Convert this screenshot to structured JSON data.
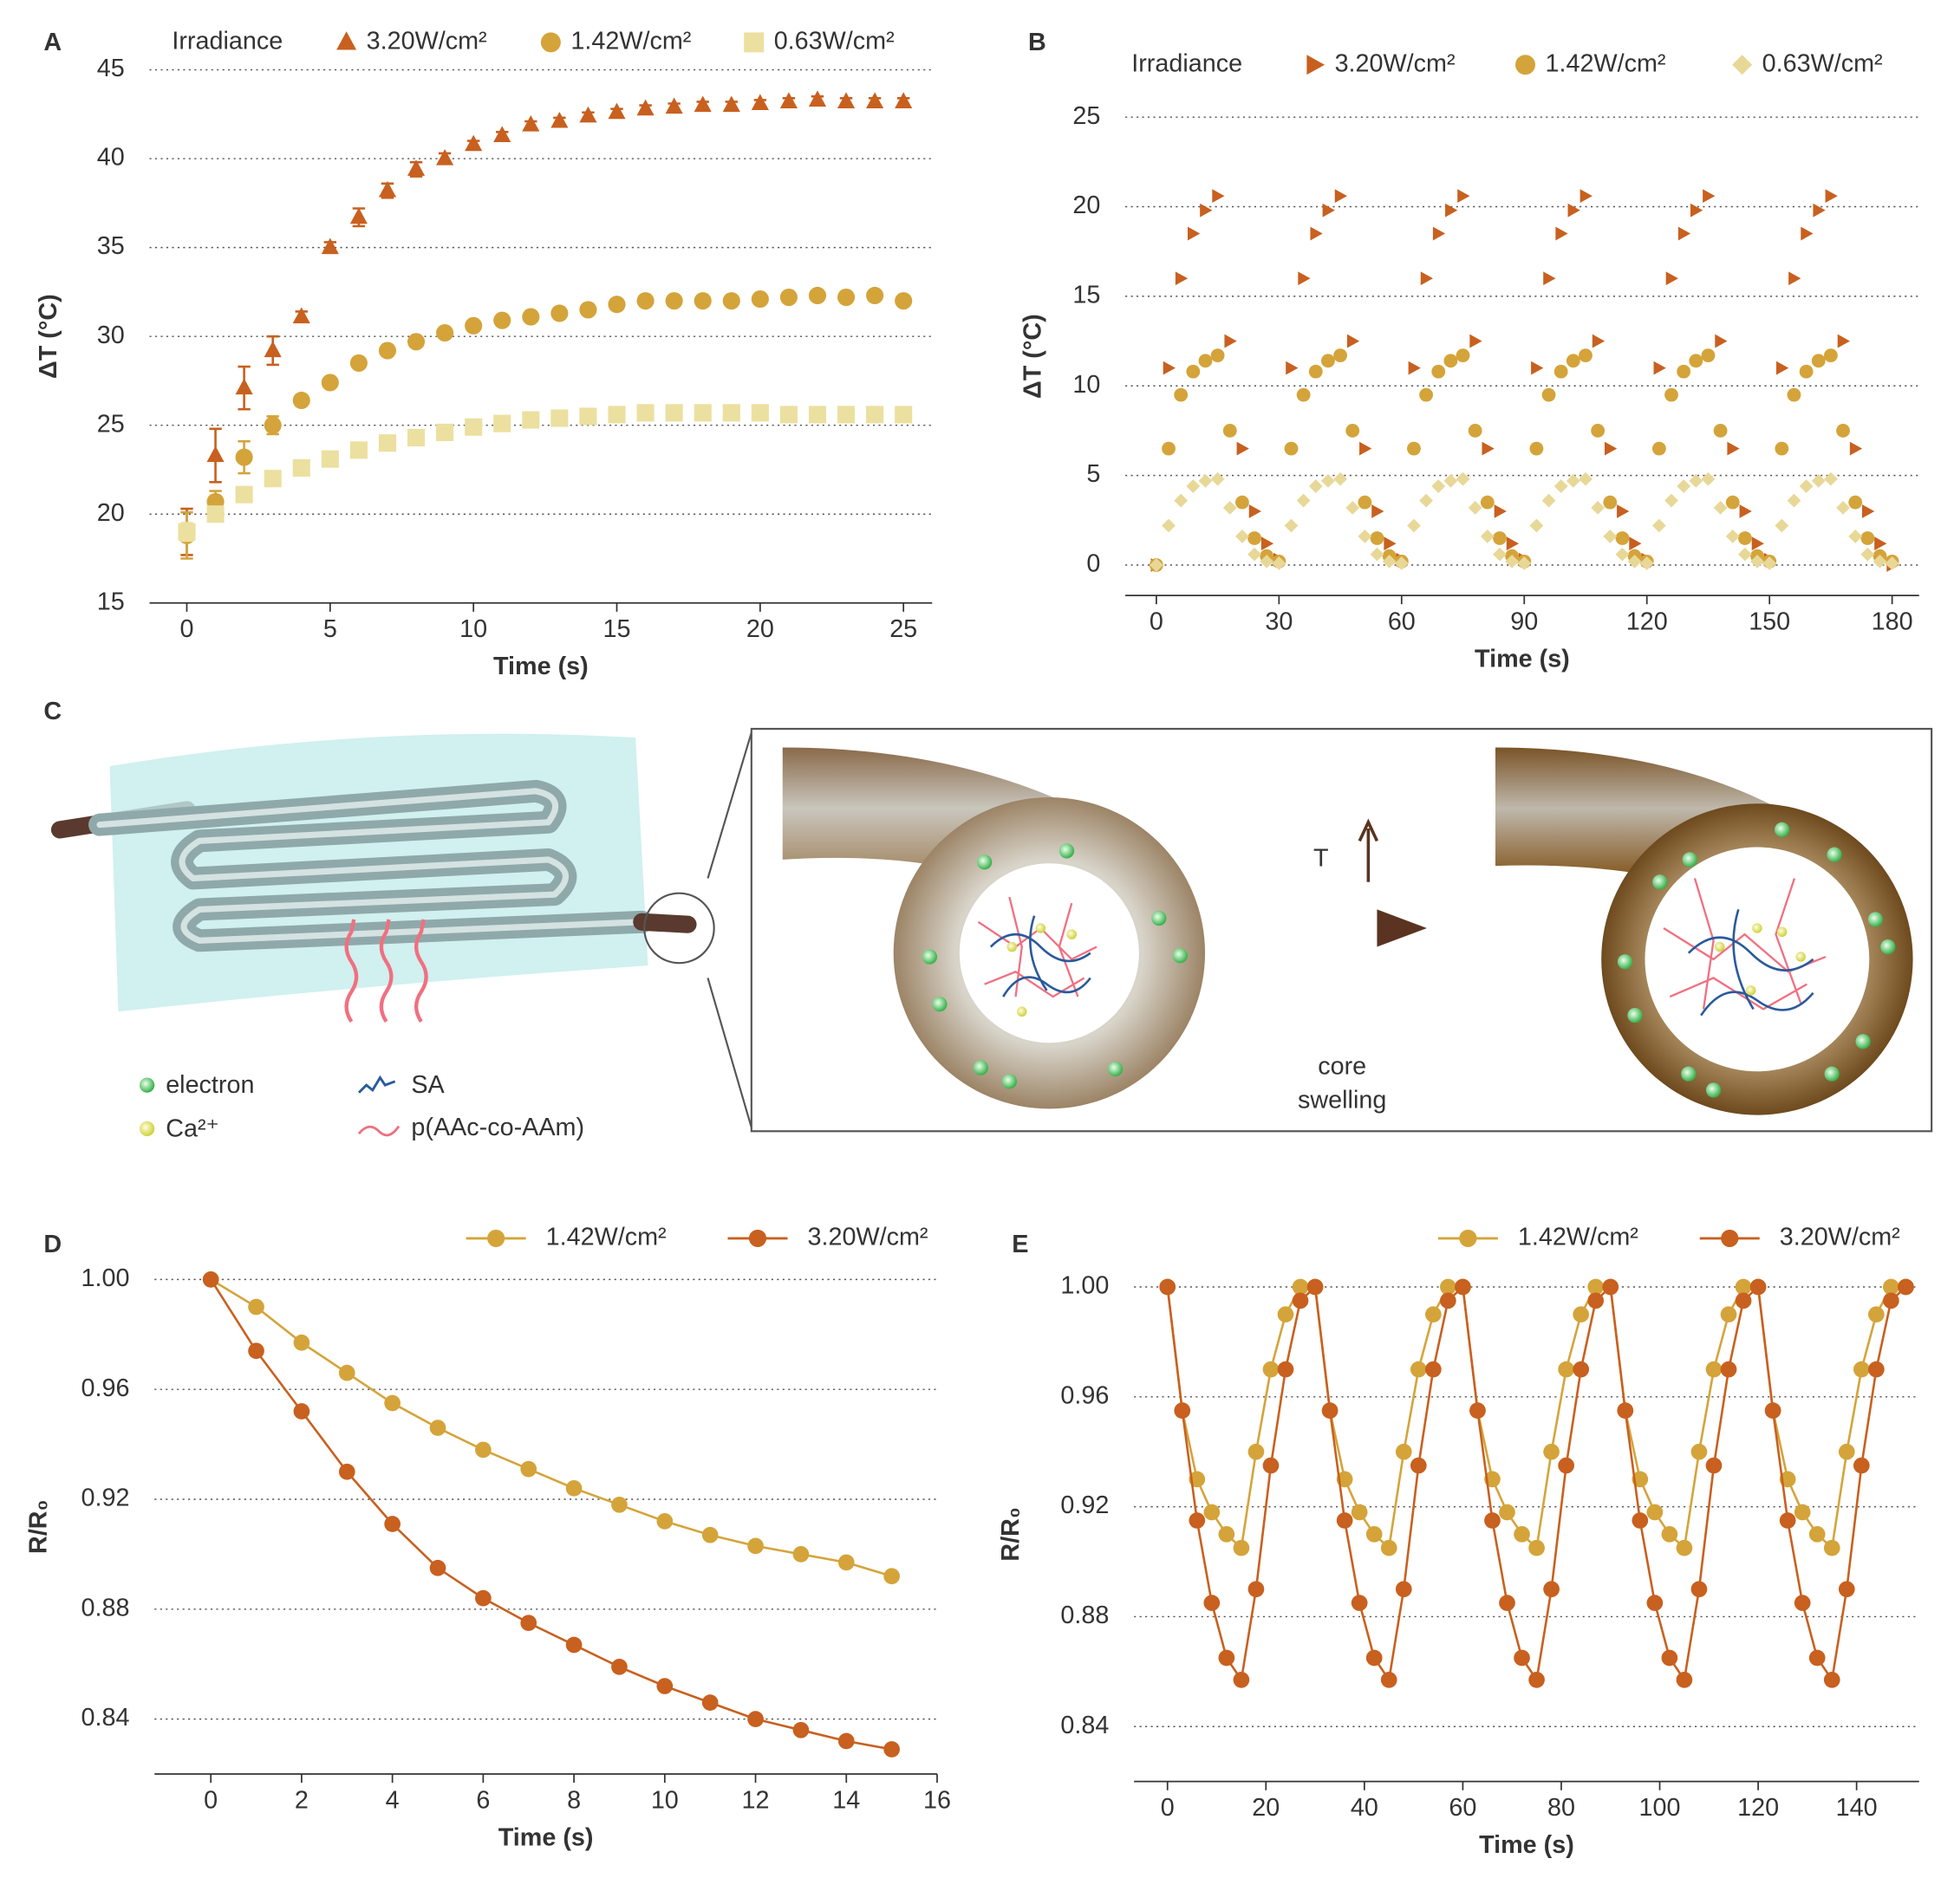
{
  "chart_data": [
    {
      "type": "scatter",
      "panel_label": "A",
      "legend_title": "Irradiance",
      "x_label": "Time (s)",
      "y_label": "ΔT (°C)",
      "x": [
        0,
        1,
        2,
        3,
        4,
        5,
        6,
        7,
        8,
        9,
        10,
        11,
        12,
        13,
        14,
        15,
        16,
        17,
        18,
        19,
        20,
        21,
        22,
        23,
        24,
        25
      ],
      "xlim": [
        -1.3,
        26
      ],
      "xticks": [
        0,
        5,
        10,
        15,
        20,
        25
      ],
      "ylim": [
        15,
        45
      ],
      "yticks": [
        15,
        20,
        25,
        30,
        35,
        40,
        45
      ],
      "grid": true,
      "series": [
        {
          "name": "3.20W/cm²",
          "color": "#c8601f",
          "marker": "triangle",
          "values": [
            19,
            23.3,
            27.1,
            29.2,
            31.1,
            35,
            36.7,
            38.2,
            39.4,
            40,
            40.8,
            41.3,
            41.9,
            42.1,
            42.4,
            42.6,
            42.8,
            42.9,
            43,
            43,
            43.1,
            43.2,
            43.3,
            43.2,
            43.2,
            43.2
          ],
          "errors": [
            1.3,
            1.5,
            1.2,
            0.8,
            0.3,
            0.3,
            0.5,
            0.4,
            0.4,
            0.3,
            0.2,
            0.2,
            0.2,
            0.2,
            0.2,
            0.2,
            0.2,
            0.2,
            0.2,
            0.2,
            0.2,
            0.2,
            0.2,
            0.2,
            0.2,
            0.2
          ]
        },
        {
          "name": "1.42W/cm²",
          "color": "#d4a43a",
          "marker": "circle",
          "values": [
            18.8,
            20.7,
            23.2,
            25,
            26.4,
            27.4,
            28.5,
            29.2,
            29.7,
            30.2,
            30.6,
            30.9,
            31.1,
            31.3,
            31.5,
            31.8,
            32,
            32,
            32,
            32,
            32.1,
            32.2,
            32.3,
            32.2,
            32.3,
            32
          ],
          "errors": [
            1.3,
            0.6,
            0.9,
            0.5,
            0.3,
            0.2,
            0.2,
            0.2,
            0.2,
            0.2,
            0.2,
            0.2,
            0.2,
            0.2,
            0.2,
            0.2,
            0.2,
            0.2,
            0.2,
            0.2,
            0.2,
            0.2,
            0.2,
            0.2,
            0.2,
            0.2
          ]
        },
        {
          "name": "0.63W/cm²",
          "color": "#ece0a0",
          "marker": "square",
          "values": [
            19,
            20,
            21.1,
            22,
            22.6,
            23.1,
            23.6,
            24,
            24.3,
            24.6,
            24.9,
            25.1,
            25.3,
            25.4,
            25.5,
            25.6,
            25.7,
            25.7,
            25.7,
            25.7,
            25.7,
            25.6,
            25.6,
            25.6,
            25.6,
            25.6
          ],
          "errors": [
            0.5,
            0.3,
            0.2,
            0.2,
            0.2,
            0.2,
            0.2,
            0.2,
            0.2,
            0.2,
            0.2,
            0.2,
            0.2,
            0.2,
            0.2,
            0.2,
            0.2,
            0.2,
            0.2,
            0.2,
            0.2,
            0.2,
            0.2,
            0.2,
            0.2,
            0.2
          ]
        }
      ]
    },
    {
      "type": "scatter",
      "panel_label": "B",
      "legend_title": "Irradiance",
      "x_label": "Time (s)",
      "y_label": "ΔT (°C)",
      "x": [
        0,
        3,
        6,
        9,
        12,
        15,
        18,
        21,
        24,
        27,
        30,
        33,
        36,
        39,
        42,
        45,
        48,
        51,
        54,
        57,
        60,
        63,
        66,
        69,
        72,
        75,
        78,
        81,
        84,
        87,
        90,
        93,
        96,
        99,
        102,
        105,
        108,
        111,
        114,
        117,
        120,
        123,
        126,
        129,
        132,
        135,
        138,
        141,
        144,
        147,
        150,
        153,
        156,
        159,
        162,
        165,
        168,
        171,
        174,
        177,
        180
      ],
      "xlim": [
        -7.6,
        186.6
      ],
      "xticks": [
        0,
        30,
        60,
        90,
        120,
        150,
        180
      ],
      "ylim": [
        -1.7,
        25
      ],
      "yticks": [
        0,
        5,
        10,
        15,
        20,
        25
      ],
      "grid": true,
      "series": [
        {
          "name": "3.20W/cm²",
          "color": "#c8601f",
          "marker": "triangle-right",
          "values": [
            0,
            11,
            16,
            18.5,
            19.8,
            20.6,
            12.5,
            6.5,
            3,
            1.2,
            0.3,
            11,
            16,
            18.5,
            19.8,
            20.6,
            12.5,
            6.5,
            3,
            1.2,
            0.3,
            11,
            16,
            18.5,
            19.8,
            20.6,
            12.5,
            6.5,
            3,
            1.2,
            0.3,
            11,
            16,
            18.5,
            19.8,
            20.6,
            12.5,
            6.5,
            3,
            1.2,
            0.3,
            11,
            16,
            18.5,
            19.8,
            20.6,
            12.5,
            6.5,
            3,
            1.2,
            0.3,
            11,
            16,
            18.5,
            19.8,
            20.6,
            12.5,
            6.5,
            3,
            1.2,
            0
          ]
        },
        {
          "name": "1.42W/cm²",
          "color": "#d4a43a",
          "marker": "circle",
          "values": [
            0,
            6.5,
            9.5,
            10.8,
            11.4,
            11.7,
            7.5,
            3.5,
            1.5,
            0.5,
            0.2,
            6.5,
            9.5,
            10.8,
            11.4,
            11.7,
            7.5,
            3.5,
            1.5,
            0.5,
            0.2,
            6.5,
            9.5,
            10.8,
            11.4,
            11.7,
            7.5,
            3.5,
            1.5,
            0.5,
            0.2,
            6.5,
            9.5,
            10.8,
            11.4,
            11.7,
            7.5,
            3.5,
            1.5,
            0.5,
            0.2,
            6.5,
            9.5,
            10.8,
            11.4,
            11.7,
            7.5,
            3.5,
            1.5,
            0.5,
            0.2,
            6.5,
            9.5,
            10.8,
            11.4,
            11.7,
            7.5,
            3.5,
            1.5,
            0.5,
            0.2
          ]
        },
        {
          "name": "0.63W/cm²",
          "color": "#e8d898",
          "marker": "diamond",
          "values": [
            0,
            2.2,
            3.6,
            4.4,
            4.7,
            4.8,
            3.2,
            1.6,
            0.6,
            0.2,
            0.1,
            2.2,
            3.6,
            4.4,
            4.7,
            4.8,
            3.2,
            1.6,
            0.6,
            0.2,
            0.1,
            2.2,
            3.6,
            4.4,
            4.7,
            4.8,
            3.2,
            1.6,
            0.6,
            0.2,
            0.1,
            2.2,
            3.6,
            4.4,
            4.7,
            4.8,
            3.2,
            1.6,
            0.6,
            0.2,
            0.1,
            2.2,
            3.6,
            4.4,
            4.7,
            4.8,
            3.2,
            1.6,
            0.6,
            0.2,
            0.1,
            2.2,
            3.6,
            4.4,
            4.7,
            4.8,
            3.2,
            1.6,
            0.6,
            0.2,
            0.1
          ]
        }
      ]
    },
    {
      "type": "line",
      "panel_label": "D",
      "x_label": "Time (s)",
      "y_label": "R/R₀",
      "x": [
        0,
        1,
        2,
        3,
        4,
        5,
        6,
        7,
        8,
        9,
        10,
        11,
        12,
        13,
        14,
        15
      ],
      "xlim": [
        -1.24,
        16
      ],
      "xticks": [
        0,
        2,
        4,
        6,
        8,
        10,
        12,
        14,
        16
      ],
      "ylim": [
        0.82,
        1.0
      ],
      "yticks": [
        0.84,
        0.88,
        0.92,
        0.96,
        {
          "value": 1,
          "label": "1.00"
        }
      ],
      "grid": true,
      "series": [
        {
          "name": "1.42W/cm²",
          "color": "#d4a43a",
          "marker": "circle",
          "values": [
            1,
            0.99,
            0.977,
            0.966,
            0.955,
            0.946,
            0.938,
            0.931,
            0.924,
            0.918,
            0.912,
            0.907,
            0.903,
            0.9,
            0.897,
            0.892
          ]
        },
        {
          "name": "3.20W/cm²",
          "color": "#c8601f",
          "marker": "circle",
          "values": [
            1,
            0.974,
            0.952,
            0.93,
            0.911,
            0.895,
            0.884,
            0.875,
            0.867,
            0.859,
            0.852,
            0.846,
            0.84,
            0.836,
            0.832,
            0.829
          ]
        }
      ]
    },
    {
      "type": "line",
      "panel_label": "E",
      "x_label": "Time (s)",
      "y_label": "R/R₀",
      "x": [
        0,
        3,
        6,
        9,
        12,
        15,
        18,
        21,
        24,
        27,
        30,
        33,
        36,
        39,
        42,
        45,
        48,
        51,
        54,
        57,
        60,
        63,
        66,
        69,
        72,
        75,
        78,
        81,
        84,
        87,
        90,
        93,
        96,
        99,
        102,
        105,
        108,
        111,
        114,
        117,
        120,
        123,
        126,
        129,
        132,
        135,
        138,
        141,
        144,
        147,
        150
      ],
      "xlim": [
        -6.8,
        152.7
      ],
      "xticks": [
        0,
        20,
        40,
        60,
        80,
        100,
        120,
        140
      ],
      "ylim": [
        0.82,
        1.0
      ],
      "yticks": [
        0.84,
        0.88,
        0.92,
        0.96,
        {
          "value": 1,
          "label": "1.00"
        }
      ],
      "grid": true,
      "series": [
        {
          "name": "1.42W/cm²",
          "color": "#d4a43a",
          "marker": "circle",
          "values": [
            1,
            0.955,
            0.93,
            0.918,
            0.91,
            0.905,
            0.94,
            0.97,
            0.99,
            1,
            1,
            0.955,
            0.93,
            0.918,
            0.91,
            0.905,
            0.94,
            0.97,
            0.99,
            1,
            1,
            0.955,
            0.93,
            0.918,
            0.91,
            0.905,
            0.94,
            0.97,
            0.99,
            1,
            1,
            0.955,
            0.93,
            0.918,
            0.91,
            0.905,
            0.94,
            0.97,
            0.99,
            1,
            1,
            0.955,
            0.93,
            0.918,
            0.91,
            0.905,
            0.94,
            0.97,
            0.99,
            1,
            1
          ]
        },
        {
          "name": "3.20W/cm²",
          "color": "#c8601f",
          "marker": "circle",
          "values": [
            1,
            0.955,
            0.915,
            0.885,
            0.865,
            0.857,
            0.89,
            0.935,
            0.97,
            0.995,
            1,
            0.955,
            0.915,
            0.885,
            0.865,
            0.857,
            0.89,
            0.935,
            0.97,
            0.995,
            1,
            0.955,
            0.915,
            0.885,
            0.865,
            0.857,
            0.89,
            0.935,
            0.97,
            0.995,
            1,
            0.955,
            0.915,
            0.885,
            0.865,
            0.857,
            0.89,
            0.935,
            0.97,
            0.995,
            1,
            0.955,
            0.915,
            0.885,
            0.865,
            0.857,
            0.89,
            0.935,
            0.97,
            0.995,
            1
          ]
        }
      ]
    }
  ],
  "diagram": {
    "panel_label": "C",
    "legend": [
      "electron",
      "Ca²⁺",
      "SA",
      "p(AAc-co-AAm)"
    ],
    "arrow_label": "T",
    "caption_lines": [
      "core",
      "swelling"
    ]
  }
}
